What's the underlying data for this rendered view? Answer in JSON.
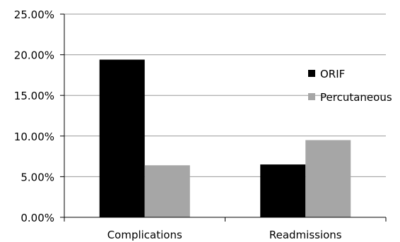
{
  "chart_data": {
    "type": "bar",
    "title": "",
    "xlabel": "",
    "ylabel": "",
    "categories": [
      "Complications",
      "Readmissions"
    ],
    "series": [
      {
        "name": "ORIF",
        "values": [
          19.4,
          6.5
        ],
        "color": "#000000"
      },
      {
        "name": "Percutaneous",
        "values": [
          6.4,
          9.5
        ],
        "color": "#a6a6a6"
      }
    ],
    "ylim": [
      0,
      25
    ],
    "yticks": [
      0,
      5,
      10,
      15,
      20,
      25
    ],
    "ytick_labels": [
      "0.00%",
      "5.00%",
      "10.00%",
      "15.00%",
      "20.00%",
      "25.00%"
    ],
    "grid": true,
    "legend_position": "right"
  }
}
